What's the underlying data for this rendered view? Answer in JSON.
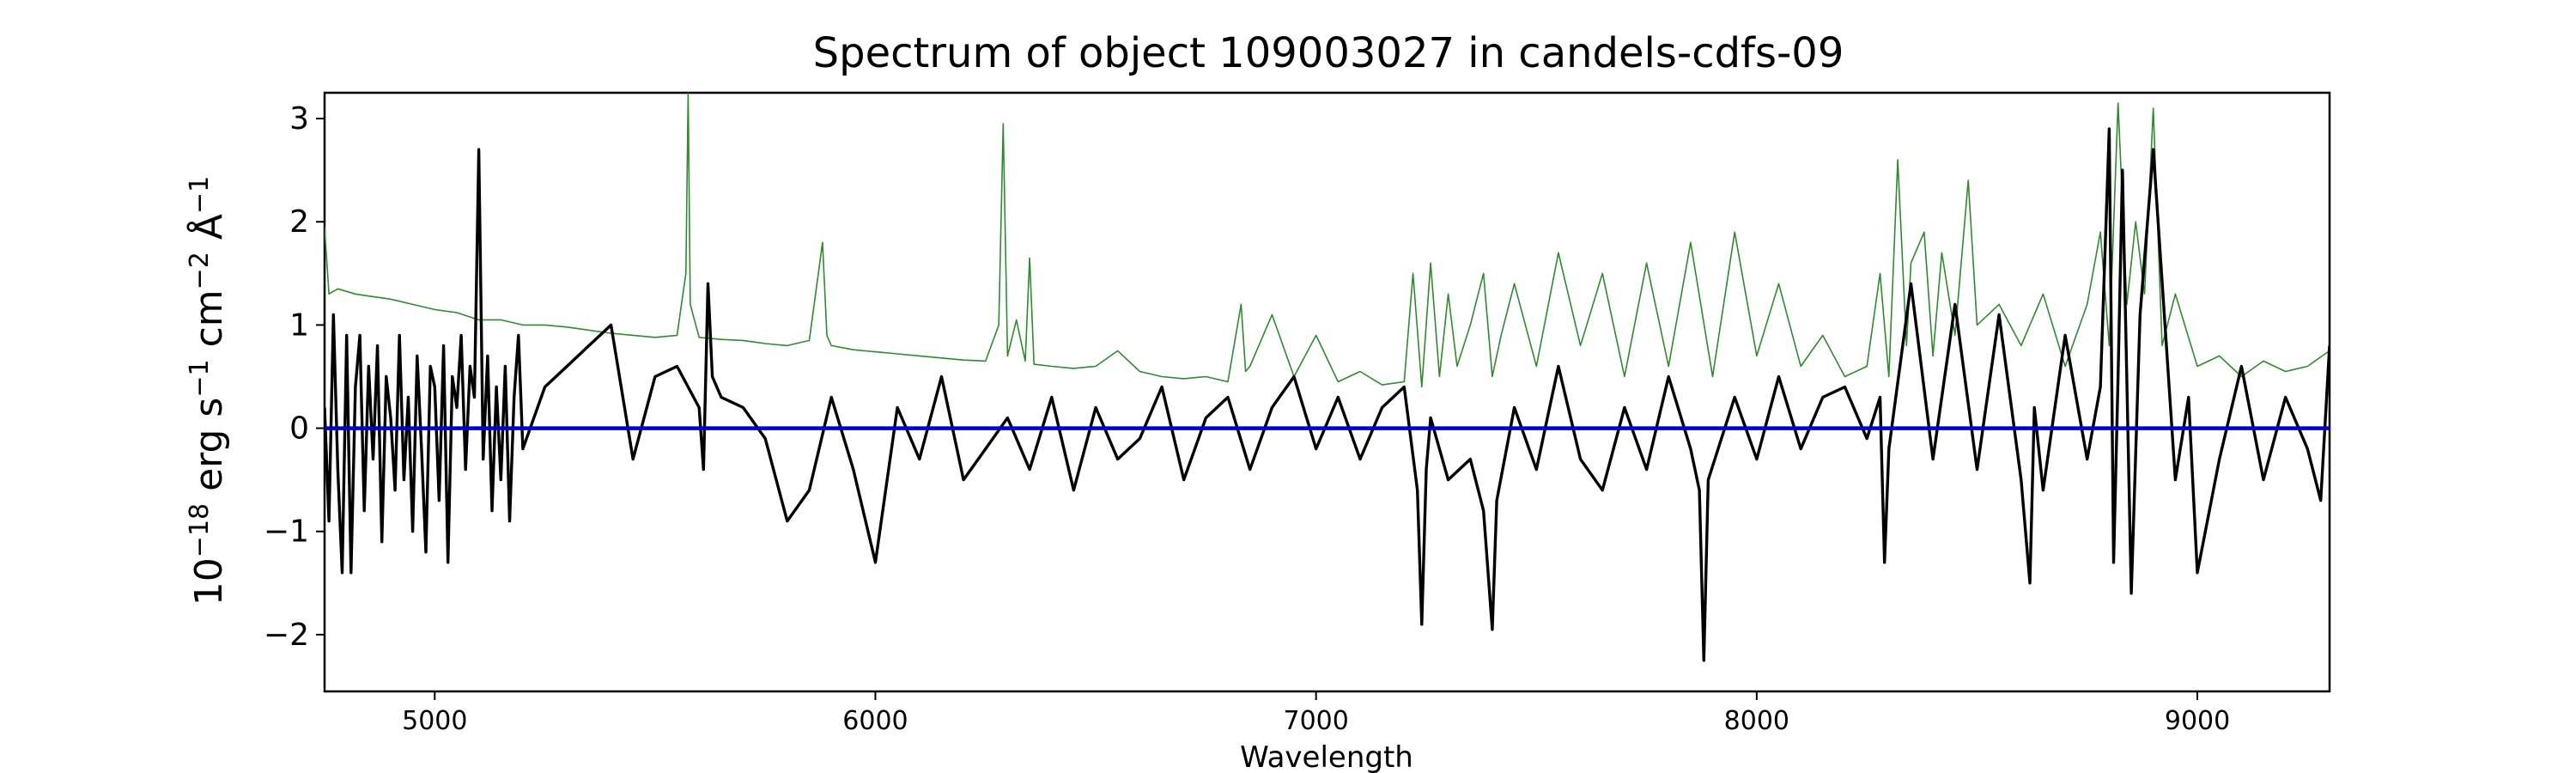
{
  "chart_data": {
    "type": "line",
    "title": "Spectrum of object 109003027 in candels-cdfs-09",
    "xlabel": "Wavelength",
    "ylabel_parts": {
      "base": "10",
      "exp": "−18",
      "erg": " erg s",
      "s_exp": "−1",
      "cm": " cm",
      "cm_exp": "−2",
      "ang": " Å",
      "ang_exp": "−1"
    },
    "xlim": [
      4750,
      9300
    ],
    "ylim": [
      -2.55,
      3.25
    ],
    "xticks": [
      {
        "value": 5000,
        "label": "5000"
      },
      {
        "value": 6000,
        "label": "6000"
      },
      {
        "value": 7000,
        "label": "7000"
      },
      {
        "value": 8000,
        "label": "8000"
      },
      {
        "value": 9000,
        "label": "9000"
      }
    ],
    "yticks": [
      {
        "value": -2,
        "label": "−2"
      },
      {
        "value": -1,
        "label": "−1"
      },
      {
        "value": 0,
        "label": "0"
      },
      {
        "value": 1,
        "label": "1"
      },
      {
        "value": 2,
        "label": "2"
      },
      {
        "value": 3,
        "label": "3"
      }
    ],
    "grid": false,
    "series": [
      {
        "role": "flux",
        "color": "#000000",
        "x": [
          4750,
          4760,
          4770,
          4780,
          4790,
          4800,
          4810,
          4820,
          4830,
          4840,
          4850,
          4860,
          4870,
          4880,
          4890,
          4900,
          4910,
          4920,
          4930,
          4940,
          4950,
          4960,
          4970,
          4980,
          4990,
          5000,
          5010,
          5020,
          5030,
          5040,
          5050,
          5060,
          5070,
          5080,
          5090,
          5100,
          5105,
          5110,
          5120,
          5130,
          5140,
          5150,
          5160,
          5170,
          5180,
          5190,
          5200,
          5250,
          5300,
          5350,
          5400,
          5450,
          5500,
          5550,
          5600,
          5610,
          5620,
          5630,
          5650,
          5700,
          5750,
          5800,
          5850,
          5900,
          5950,
          6000,
          6050,
          6100,
          6150,
          6200,
          6250,
          6300,
          6350,
          6400,
          6450,
          6500,
          6550,
          6600,
          6650,
          6700,
          6750,
          6800,
          6850,
          6900,
          6950,
          7000,
          7050,
          7100,
          7150,
          7200,
          7230,
          7240,
          7250,
          7260,
          7300,
          7350,
          7380,
          7400,
          7410,
          7450,
          7500,
          7550,
          7600,
          7650,
          7700,
          7750,
          7800,
          7850,
          7870,
          7880,
          7890,
          7950,
          8000,
          8050,
          8100,
          8150,
          8200,
          8250,
          8280,
          8290,
          8300,
          8350,
          8400,
          8450,
          8500,
          8550,
          8600,
          8620,
          8630,
          8650,
          8700,
          8750,
          8780,
          8800,
          8810,
          8820,
          8830,
          8850,
          8870,
          8900,
          8950,
          8980,
          9000,
          9050,
          9100,
          9150,
          9200,
          9250,
          9280,
          9300
        ],
        "y": [
          0.2,
          -0.9,
          1.1,
          -0.4,
          -1.4,
          0.9,
          -1.4,
          0.4,
          0.9,
          -0.8,
          0.6,
          -0.3,
          0.8,
          -1.1,
          0.5,
          0.1,
          -0.6,
          0.9,
          -0.5,
          0.3,
          -1.0,
          0.7,
          -0.2,
          -1.2,
          0.6,
          0.4,
          -0.7,
          0.8,
          -1.3,
          0.5,
          0.2,
          0.9,
          -0.4,
          0.6,
          0.3,
          2.7,
          1.2,
          -0.3,
          0.7,
          -0.8,
          0.4,
          -0.5,
          0.6,
          -0.9,
          0.3,
          0.9,
          -0.2,
          0.4,
          0.6,
          0.8,
          1.0,
          -0.3,
          0.5,
          0.6,
          0.2,
          -0.4,
          1.4,
          0.5,
          0.3,
          0.2,
          -0.1,
          -0.9,
          -0.6,
          0.3,
          -0.4,
          -1.3,
          0.2,
          -0.3,
          0.5,
          -0.5,
          -0.2,
          0.1,
          -0.4,
          0.3,
          -0.6,
          0.2,
          -0.3,
          -0.1,
          0.4,
          -0.5,
          0.1,
          0.3,
          -0.4,
          0.2,
          0.5,
          -0.2,
          0.3,
          -0.3,
          0.2,
          0.4,
          -0.6,
          -1.9,
          -0.4,
          0.1,
          -0.5,
          -0.3,
          -0.8,
          -1.95,
          -0.7,
          0.2,
          -0.4,
          0.6,
          -0.3,
          -0.6,
          0.2,
          -0.4,
          0.5,
          -0.2,
          -0.6,
          -2.25,
          -0.5,
          0.3,
          -0.3,
          0.5,
          -0.2,
          0.3,
          0.4,
          -0.1,
          0.3,
          -1.3,
          -0.2,
          1.4,
          -0.3,
          1.2,
          -0.4,
          1.1,
          -0.5,
          -1.5,
          0.2,
          -0.6,
          0.9,
          -0.3,
          0.4,
          2.9,
          -1.3,
          0.5,
          2.5,
          -1.6,
          1.1,
          2.7,
          -0.5,
          0.3,
          -1.4,
          -0.3,
          0.6,
          -0.5,
          0.3,
          -0.2,
          -0.7,
          0.8
        ]
      },
      {
        "role": "error",
        "color": "#2e8b2e",
        "x": [
          4750,
          4760,
          4780,
          4820,
          4850,
          4900,
          4950,
          5000,
          5050,
          5100,
          5150,
          5200,
          5250,
          5300,
          5350,
          5400,
          5450,
          5500,
          5550,
          5570,
          5575,
          5580,
          5600,
          5650,
          5700,
          5750,
          5800,
          5850,
          5880,
          5890,
          5900,
          5950,
          6000,
          6050,
          6100,
          6150,
          6200,
          6250,
          6280,
          6290,
          6300,
          6320,
          6340,
          6350,
          6360,
          6400,
          6450,
          6500,
          6550,
          6600,
          6650,
          6700,
          6750,
          6800,
          6830,
          6840,
          6850,
          6900,
          6950,
          7000,
          7050,
          7100,
          7150,
          7200,
          7220,
          7240,
          7260,
          7280,
          7300,
          7320,
          7350,
          7380,
          7400,
          7420,
          7450,
          7500,
          7550,
          7600,
          7650,
          7700,
          7750,
          7800,
          7850,
          7900,
          7950,
          8000,
          8050,
          8100,
          8150,
          8200,
          8250,
          8280,
          8300,
          8320,
          8340,
          8350,
          8380,
          8400,
          8420,
          8450,
          8480,
          8500,
          8550,
          8600,
          8650,
          8700,
          8750,
          8780,
          8800,
          8820,
          8840,
          8860,
          8880,
          8900,
          8920,
          8950,
          9000,
          9050,
          9100,
          9150,
          9200,
          9250,
          9300
        ],
        "y": [
          1.95,
          1.3,
          1.35,
          1.3,
          1.28,
          1.25,
          1.2,
          1.15,
          1.12,
          1.05,
          1.05,
          1.0,
          1.0,
          0.98,
          0.95,
          0.92,
          0.9,
          0.88,
          0.9,
          1.5,
          3.25,
          1.2,
          0.88,
          0.86,
          0.85,
          0.82,
          0.8,
          0.85,
          1.8,
          0.9,
          0.8,
          0.76,
          0.74,
          0.72,
          0.7,
          0.68,
          0.66,
          0.65,
          1.0,
          2.95,
          0.7,
          1.05,
          0.65,
          1.65,
          0.62,
          0.6,
          0.58,
          0.6,
          0.75,
          0.55,
          0.5,
          0.48,
          0.5,
          0.45,
          1.2,
          0.55,
          0.6,
          1.1,
          0.5,
          0.9,
          0.45,
          0.55,
          0.42,
          0.45,
          1.5,
          0.4,
          1.6,
          0.5,
          1.3,
          0.6,
          1.0,
          1.5,
          0.5,
          0.9,
          1.4,
          0.6,
          1.7,
          0.8,
          1.5,
          0.5,
          1.6,
          0.6,
          1.8,
          0.5,
          1.9,
          0.7,
          1.4,
          0.6,
          0.9,
          0.5,
          0.6,
          1.5,
          0.5,
          2.6,
          0.8,
          1.6,
          1.9,
          0.7,
          1.7,
          0.9,
          2.4,
          1.0,
          1.2,
          0.8,
          1.3,
          0.6,
          1.2,
          1.9,
          0.8,
          3.15,
          1.2,
          2.0,
          1.3,
          3.1,
          0.8,
          1.3,
          0.6,
          0.7,
          0.5,
          0.65,
          0.55,
          0.6,
          0.75
        ]
      },
      {
        "role": "zero",
        "color": "#0000cc",
        "x": [
          4750,
          9300
        ],
        "y": [
          0,
          0
        ]
      }
    ]
  }
}
